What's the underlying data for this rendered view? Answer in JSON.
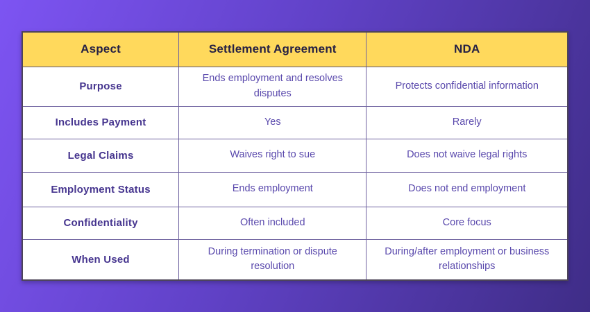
{
  "table": {
    "headers": [
      "Aspect",
      "Settlement Agreement",
      "NDA"
    ],
    "rows": [
      {
        "aspect": "Purpose",
        "settlement": "Ends employment and resolves disputes",
        "nda": "Protects confidential information"
      },
      {
        "aspect": "Includes Payment",
        "settlement": "Yes",
        "nda": "Rarely"
      },
      {
        "aspect": "Legal Claims",
        "settlement": "Waives right to sue",
        "nda": "Does not waive legal rights"
      },
      {
        "aspect": "Employment Status",
        "settlement": "Ends employment",
        "nda": "Does not end employment"
      },
      {
        "aspect": "Confidentiality",
        "settlement": "Often included",
        "nda": "Core focus"
      },
      {
        "aspect": "When Used",
        "settlement": "During termination or dispute resolution",
        "nda": "During/after employment or business relationships"
      }
    ]
  },
  "colors": {
    "background_gradient_start": "#7d54f2",
    "background_gradient_end": "#3f2d87",
    "header_bg": "#ffd95c",
    "header_text": "#262144",
    "aspect_text": "#46358f",
    "value_text": "#5948ac",
    "grid_line": "#6e619f",
    "outer_border": "#4d4559",
    "cell_bg": "#ffffff"
  }
}
